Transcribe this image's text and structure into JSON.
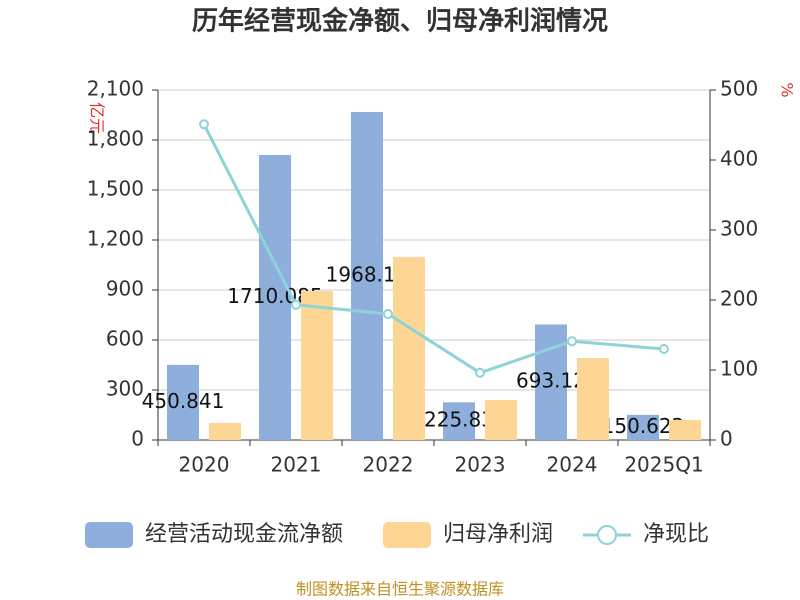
{
  "chart_data": {
    "type": "bar",
    "title": "历年经营现金净额、归母净利润情况",
    "y_label": "亿元",
    "y2_label": "%",
    "source": "制图数据来自恒生聚源数据库",
    "categories": [
      "2020",
      "2021",
      "2022",
      "2023",
      "2024",
      "2025Q1"
    ],
    "series": [
      {
        "name": "经营活动现金流净额",
        "type": "bar",
        "color": "#8eaedb",
        "values": [
          450.841,
          1710.085,
          1968.14,
          225.83,
          693.12,
          150.622
        ],
        "show_labels": true
      },
      {
        "name": "归母净利润",
        "type": "bar",
        "color": "#fdd696",
        "values": [
          102,
          894,
          1098,
          240,
          492,
          120
        ]
      },
      {
        "name": "净现比",
        "type": "line",
        "color": "#8dd3d8",
        "axis": "y2",
        "values": [
          451,
          193,
          180,
          96,
          141,
          130
        ]
      }
    ],
    "ylim": [
      0,
      2100
    ],
    "yticks": [
      0,
      300,
      600,
      900,
      {
        "value": 1200,
        "label": "1,200"
      },
      {
        "value": 1500,
        "label": "1,500"
      },
      {
        "value": 1800,
        "label": "1,800"
      },
      {
        "value": 2100,
        "label": "2,100"
      }
    ],
    "y2lim": [
      0,
      500
    ],
    "y2ticks": [
      0,
      100,
      200,
      300,
      400,
      500
    ],
    "grid": true,
    "legend": "bottom"
  }
}
